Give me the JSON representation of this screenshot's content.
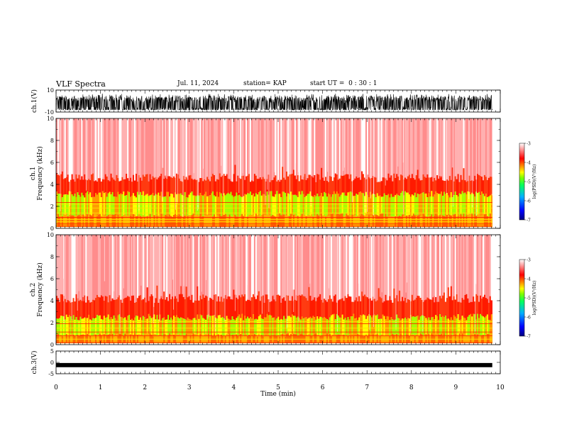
{
  "header": {
    "title": "VLF Spectra",
    "date": "Jul. 11, 2024",
    "station": "station= KAP",
    "start": "start UT =  0 : 30 : 1"
  },
  "chart_data": [
    {
      "type": "line",
      "panel": "ch1-waveform",
      "ylabel": "ch.1(V)",
      "ylim": [
        -10,
        10
      ],
      "y_ticks": [
        "10",
        "-10"
      ],
      "xlim": [
        0,
        10
      ],
      "waveform_center_v": -3,
      "waveform_range_v": [
        -8,
        10
      ],
      "data_end_min": 9.82
    },
    {
      "type": "heatmap",
      "panel": "ch1-spectrogram",
      "ylabel_top": "ch.1",
      "ylabel": "Frequency (kHz)",
      "ylim": [
        0,
        10
      ],
      "y_ticks": [
        "0",
        "2",
        "4",
        "6",
        "8",
        "10"
      ],
      "xlim": [
        0,
        10
      ],
      "data_end_min": 9.82,
      "colorbar": {
        "label": "log(PSD)(V²/Hz)",
        "range": [
          -7,
          -3
        ],
        "ticks": [
          "-3",
          "-4",
          "-5",
          "-6",
          "-7"
        ]
      },
      "green_band_khz": [
        1.2,
        3.1
      ],
      "red_band_top_khz": 4.6,
      "line_freqs_khz": [
        0.2,
        0.4,
        0.6,
        0.8,
        1.0,
        1.4,
        1.85,
        2.2,
        2.35
      ]
    },
    {
      "type": "heatmap",
      "panel": "ch2-spectrogram",
      "ylabel_top": "ch.2",
      "ylabel": "Frequency (kHz)",
      "ylim": [
        0,
        10
      ],
      "y_ticks": [
        "0",
        "2",
        "4",
        "6",
        "8",
        "10"
      ],
      "xlim": [
        0,
        10
      ],
      "data_end_min": 9.82,
      "colorbar": {
        "label": "log(PSD)(V²/Hz)",
        "range": [
          -7,
          -3
        ],
        "ticks": [
          "-3",
          "-4",
          "-5",
          "-6",
          "-7"
        ]
      },
      "green_band_khz": [
        0.9,
        2.5
      ],
      "red_band_top_khz": 4.2,
      "line_freqs_khz": [
        0.2,
        0.5,
        0.8,
        1.15,
        1.5,
        1.9,
        2.1
      ]
    },
    {
      "type": "line",
      "panel": "ch3-waveform",
      "ylabel": "ch.3(V)",
      "ylim": [
        -5,
        5
      ],
      "y_ticks": [
        "5",
        "0",
        "-5"
      ],
      "xlim": [
        0,
        10
      ],
      "waveform_center_v": -1.2,
      "waveform_range_v": [
        -1.5,
        -0.9
      ],
      "data_end_min": 9.82
    }
  ],
  "x_axis": {
    "label": "Time (min)",
    "ticks": [
      "0",
      "1",
      "2",
      "3",
      "4",
      "5",
      "6",
      "7",
      "8",
      "9",
      "10"
    ]
  },
  "colors": {
    "colormap": [
      "#00007f",
      "#0000ff",
      "#00b0ff",
      "#00ff60",
      "#7fff00",
      "#ffff00",
      "#ff9000",
      "#ff0000",
      "#ffffff"
    ]
  }
}
